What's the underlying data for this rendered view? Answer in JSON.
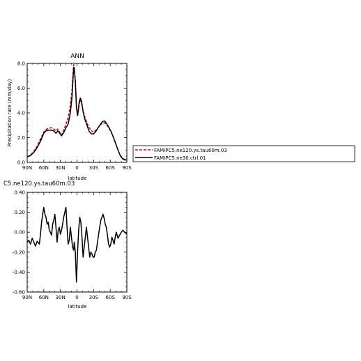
{
  "chart_data": [
    {
      "type": "line",
      "title": "ANN",
      "xlabel": "latitude",
      "ylabel": "Precipitation rate (mm/day)",
      "xlim": [
        90,
        -90
      ],
      "ylim": [
        0,
        8
      ],
      "xticks": [
        90,
        60,
        30,
        0,
        -30,
        -60,
        -90
      ],
      "xtick_labels": [
        "90N",
        "60N",
        "30N",
        "0",
        "30S",
        "60S",
        "90S"
      ],
      "yticks": [
        0,
        2,
        4,
        6,
        8
      ],
      "ytick_labels": [
        "0.0",
        "2.0",
        "4.0",
        "6.0",
        "8.0"
      ],
      "legend": {
        "placement": "right"
      },
      "series": [
        {
          "name": "FAMIPC5.ne120.ys.tau60m.03",
          "color": "#cc0000",
          "style": "dashed",
          "points": [
            [
              90,
              0.45
            ],
            [
              84,
              0.6
            ],
            [
              78,
              0.9
            ],
            [
              72,
              1.3
            ],
            [
              66,
              1.9
            ],
            [
              60,
              2.45
            ],
            [
              56,
              2.65
            ],
            [
              52,
              2.75
            ],
            [
              46,
              2.8
            ],
            [
              42,
              2.7
            ],
            [
              38,
              2.55
            ],
            [
              35,
              2.7
            ],
            [
              32,
              2.5
            ],
            [
              28,
              2.2
            ],
            [
              24,
              2.6
            ],
            [
              20,
              3.1
            ],
            [
              16,
              3.6
            ],
            [
              12,
              4.6
            ],
            [
              9,
              5.9
            ],
            [
              7,
              7.3
            ],
            [
              6,
              7.9
            ],
            [
              5,
              7.7
            ],
            [
              3,
              6.6
            ],
            [
              1,
              4.6
            ],
            [
              -1,
              3.7
            ],
            [
              -2,
              4.0
            ],
            [
              -4,
              4.7
            ],
            [
              -6,
              5.1
            ],
            [
              -8,
              4.8
            ],
            [
              -11,
              4.2
            ],
            [
              -14,
              3.7
            ],
            [
              -18,
              3.2
            ],
            [
              -22,
              2.8
            ],
            [
              -26,
              2.55
            ],
            [
              -30,
              2.45
            ],
            [
              -34,
              2.6
            ],
            [
              -38,
              2.8
            ],
            [
              -42,
              3.0
            ],
            [
              -46,
              3.2
            ],
            [
              -50,
              3.2
            ],
            [
              -54,
              3.0
            ],
            [
              -58,
              2.75
            ],
            [
              -62,
              2.4
            ],
            [
              -66,
              2.0
            ],
            [
              -70,
              1.5
            ],
            [
              -74,
              1.0
            ],
            [
              -78,
              0.6
            ],
            [
              -82,
              0.35
            ],
            [
              -86,
              0.25
            ],
            [
              -90,
              0.2
            ]
          ]
        },
        {
          "name": "FAMIPC5.ne30.ctrl.01",
          "color": "#000000",
          "style": "solid",
          "points": [
            [
              90,
              0.45
            ],
            [
              84,
              0.55
            ],
            [
              78,
              0.8
            ],
            [
              72,
              1.2
            ],
            [
              66,
              1.7
            ],
            [
              60,
              2.35
            ],
            [
              56,
              2.55
            ],
            [
              52,
              2.6
            ],
            [
              46,
              2.6
            ],
            [
              42,
              2.55
            ],
            [
              38,
              2.35
            ],
            [
              35,
              2.55
            ],
            [
              32,
              2.4
            ],
            [
              28,
              2.15
            ],
            [
              24,
              2.4
            ],
            [
              20,
              2.8
            ],
            [
              16,
              3.1
            ],
            [
              12,
              4.0
            ],
            [
              9,
              5.3
            ],
            [
              7,
              6.9
            ],
            [
              6,
              7.7
            ],
            [
              5,
              7.6
            ],
            [
              3,
              6.5
            ],
            [
              1,
              4.4
            ],
            [
              -1,
              3.8
            ],
            [
              -2,
              4.1
            ],
            [
              -4,
              4.9
            ],
            [
              -6,
              5.2
            ],
            [
              -8,
              5.0
            ],
            [
              -11,
              4.1
            ],
            [
              -14,
              3.5
            ],
            [
              -18,
              3.0
            ],
            [
              -22,
              2.5
            ],
            [
              -26,
              2.3
            ],
            [
              -30,
              2.3
            ],
            [
              -34,
              2.5
            ],
            [
              -38,
              2.8
            ],
            [
              -42,
              3.05
            ],
            [
              -46,
              3.3
            ],
            [
              -50,
              3.35
            ],
            [
              -54,
              3.1
            ],
            [
              -58,
              2.8
            ],
            [
              -62,
              2.45
            ],
            [
              -66,
              2.0
            ],
            [
              -70,
              1.5
            ],
            [
              -74,
              1.0
            ],
            [
              -78,
              0.55
            ],
            [
              -82,
              0.3
            ],
            [
              -86,
              0.2
            ],
            [
              -90,
              0.2
            ]
          ]
        }
      ]
    },
    {
      "type": "line",
      "title": "C5.ne120.ys.tau60m.03",
      "xlabel": "latitude",
      "ylabel": "",
      "xlim": [
        90,
        -90
      ],
      "ylim": [
        -0.6,
        0.4
      ],
      "xticks": [
        90,
        60,
        30,
        0,
        -30,
        -60,
        -90
      ],
      "xtick_labels": [
        "90N",
        "60N",
        "30N",
        "0",
        "30S",
        "60S",
        "90S"
      ],
      "yticks": [
        -0.6,
        -0.4,
        -0.2,
        0,
        0.2,
        0.4
      ],
      "ytick_labels": [
        "-0.60",
        "-0.40",
        "-0.20",
        "0.00",
        "0.20",
        "0.40"
      ],
      "series": [
        {
          "color": "#000000",
          "style": "solid",
          "points": [
            [
              90,
              -0.1
            ],
            [
              87,
              -0.08
            ],
            [
              84,
              -0.12
            ],
            [
              81,
              -0.06
            ],
            [
              78,
              -0.1
            ],
            [
              75,
              -0.14
            ],
            [
              72,
              -0.09
            ],
            [
              68,
              -0.12
            ],
            [
              66,
              -0.02
            ],
            [
              64,
              0.1
            ],
            [
              62,
              0.18
            ],
            [
              60,
              0.25
            ],
            [
              58,
              0.18
            ],
            [
              56,
              0.15
            ],
            [
              54,
              0.08
            ],
            [
              52,
              0.1
            ],
            [
              50,
              0.02
            ],
            [
              48,
              0.0
            ],
            [
              46,
              -0.03
            ],
            [
              44,
              0.08
            ],
            [
              42,
              0.12
            ],
            [
              40,
              0.18
            ],
            [
              38,
              0.05
            ],
            [
              36,
              -0.1
            ],
            [
              34,
              0.02
            ],
            [
              32,
              0.05
            ],
            [
              30,
              -0.02
            ],
            [
              28,
              0.02
            ],
            [
              26,
              0.08
            ],
            [
              24,
              0.15
            ],
            [
              22,
              0.2
            ],
            [
              20,
              0.25
            ],
            [
              18,
              0.05
            ],
            [
              16,
              -0.12
            ],
            [
              14,
              -0.08
            ],
            [
              12,
              0.05
            ],
            [
              10,
              -0.05
            ],
            [
              8,
              -0.15
            ],
            [
              6,
              -0.18
            ],
            [
              5,
              -0.1
            ],
            [
              3,
              -0.2
            ],
            [
              2,
              -0.35
            ],
            [
              1,
              -0.5
            ],
            [
              0,
              -0.35
            ],
            [
              -1,
              -0.2
            ],
            [
              -3,
              0.02
            ],
            [
              -5,
              0.15
            ],
            [
              -7,
              0.1
            ],
            [
              -9,
              -0.05
            ],
            [
              -11,
              -0.25
            ],
            [
              -13,
              -0.15
            ],
            [
              -15,
              -0.05
            ],
            [
              -17,
              0.05
            ],
            [
              -19,
              -0.05
            ],
            [
              -21,
              -0.15
            ],
            [
              -23,
              -0.25
            ],
            [
              -25,
              -0.2
            ],
            [
              -27,
              -0.22
            ],
            [
              -29,
              -0.25
            ],
            [
              -31,
              -0.25
            ],
            [
              -33,
              -0.2
            ],
            [
              -35,
              -0.18
            ],
            [
              -37,
              -0.1
            ],
            [
              -39,
              -0.02
            ],
            [
              -41,
              0.05
            ],
            [
              -43,
              0.12
            ],
            [
              -45,
              0.15
            ],
            [
              -47,
              0.18
            ],
            [
              -49,
              0.14
            ],
            [
              -51,
              0.08
            ],
            [
              -53,
              0.05
            ],
            [
              -55,
              -0.03
            ],
            [
              -57,
              -0.12
            ],
            [
              -59,
              -0.15
            ],
            [
              -61,
              -0.12
            ],
            [
              -63,
              -0.05
            ],
            [
              -65,
              -0.08
            ],
            [
              -67,
              -0.12
            ],
            [
              -69,
              -0.05
            ],
            [
              -71,
              0.0
            ],
            [
              -74,
              -0.06
            ],
            [
              -77,
              -0.03
            ],
            [
              -80,
              0.0
            ],
            [
              -83,
              0.02
            ],
            [
              -86,
              0.0
            ],
            [
              -90,
              -0.02
            ]
          ]
        }
      ]
    }
  ],
  "legend_entries": [
    {
      "label": "FAMIPC5.ne120.ys.tau60m.03",
      "color": "#cc0000",
      "style": "dashed"
    },
    {
      "label": "FAMIPC5.ne30.ctrl.01",
      "color": "#000000",
      "style": "solid"
    }
  ]
}
